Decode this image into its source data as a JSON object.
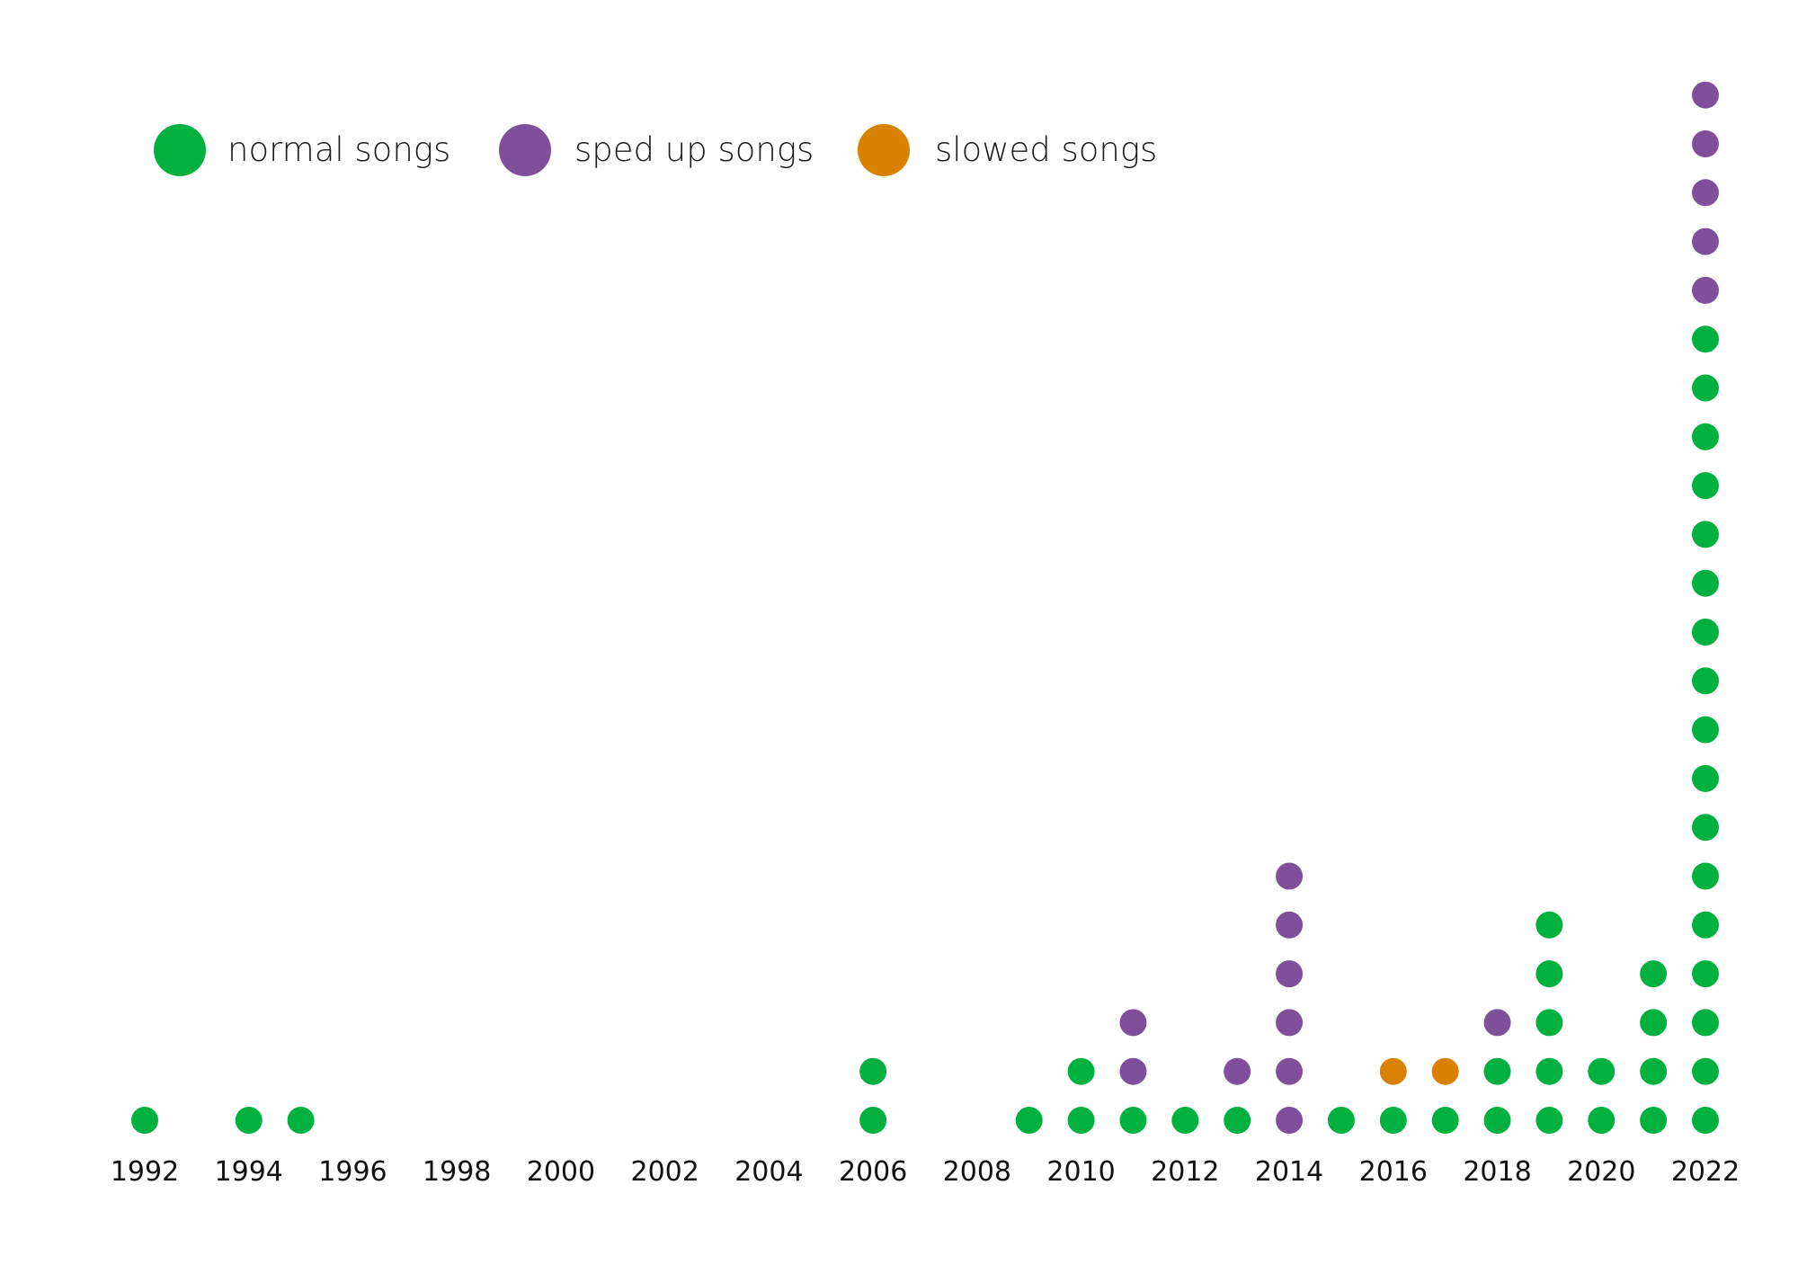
{
  "chart_data": {
    "type": "scatter",
    "xlim": [
      1992,
      2022
    ],
    "x_ticks": [
      "1992",
      "1994",
      "1996",
      "1998",
      "2000",
      "2002",
      "2004",
      "2006",
      "2008",
      "2010",
      "2012",
      "2014",
      "2016",
      "2018",
      "2020",
      "2022"
    ],
    "grid": false,
    "legend_placement": "top-left",
    "series": [
      {
        "name": "normal songs",
        "color": "#00b140"
      },
      {
        "name": "sped up songs",
        "color": "#7f4f9b"
      },
      {
        "name": "slowed songs",
        "color": "#d98100"
      }
    ],
    "stacks": [
      {
        "year": 1992,
        "normal": 1,
        "sped_up": 0,
        "slowed": 0
      },
      {
        "year": 1994,
        "normal": 1,
        "sped_up": 0,
        "slowed": 0
      },
      {
        "year": 1995,
        "normal": 1,
        "sped_up": 0,
        "slowed": 0
      },
      {
        "year": 2006,
        "normal": 2,
        "sped_up": 0,
        "slowed": 0
      },
      {
        "year": 2009,
        "normal": 1,
        "sped_up": 0,
        "slowed": 0
      },
      {
        "year": 2010,
        "normal": 2,
        "sped_up": 0,
        "slowed": 0
      },
      {
        "year": 2011,
        "normal": 1,
        "sped_up": 2,
        "slowed": 0
      },
      {
        "year": 2012,
        "normal": 1,
        "sped_up": 0,
        "slowed": 0
      },
      {
        "year": 2013,
        "normal": 1,
        "sped_up": 1,
        "slowed": 0
      },
      {
        "year": 2014,
        "normal": 0,
        "sped_up": 6,
        "slowed": 0
      },
      {
        "year": 2015,
        "normal": 1,
        "sped_up": 0,
        "slowed": 0
      },
      {
        "year": 2016,
        "normal": 1,
        "sped_up": 0,
        "slowed": 1
      },
      {
        "year": 2017,
        "normal": 1,
        "sped_up": 0,
        "slowed": 1
      },
      {
        "year": 2018,
        "normal": 2,
        "sped_up": 1,
        "slowed": 0
      },
      {
        "year": 2019,
        "normal": 5,
        "sped_up": 0,
        "slowed": 0
      },
      {
        "year": 2020,
        "normal": 2,
        "sped_up": 0,
        "slowed": 0
      },
      {
        "year": 2021,
        "normal": 4,
        "sped_up": 0,
        "slowed": 0
      },
      {
        "year": 2022,
        "normal": 17,
        "sped_up": 5,
        "slowed": 0
      }
    ]
  }
}
